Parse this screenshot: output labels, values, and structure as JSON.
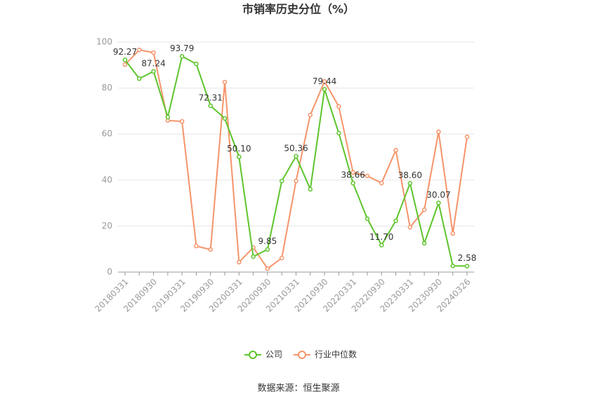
{
  "chart_data": {
    "type": "line",
    "title": "市销率历史分位（%）",
    "categories": [
      "20180331",
      null,
      "20180930",
      null,
      "20190331",
      null,
      "20190930",
      null,
      "20200331",
      null,
      "20200930",
      null,
      "20210331",
      null,
      "20210930",
      null,
      "20220331",
      null,
      "20220930",
      null,
      "20230331",
      null,
      "20230930",
      null,
      "20240326"
    ],
    "series": [
      {
        "name": "公司",
        "color": "#5ec42c",
        "values": [
          92.27,
          84.1,
          87.24,
          67.4,
          93.79,
          90.5,
          72.31,
          66.8,
          50.1,
          6.7,
          9.85,
          39.6,
          50.36,
          36.0,
          79.44,
          60.4,
          38.66,
          23.2,
          11.7,
          22.3,
          38.6,
          12.5,
          30.07,
          2.7,
          2.58
        ],
        "value_labels": [
          "92.27",
          null,
          "87.24",
          null,
          "93.79",
          null,
          "72.31",
          null,
          "50.10",
          null,
          "9.85",
          null,
          "50.36",
          null,
          "79.44",
          null,
          "38.66",
          null,
          "11.70",
          null,
          "38.60",
          null,
          "30.07",
          null,
          "2.58"
        ]
      },
      {
        "name": "行业中位数",
        "color": "#f5946a",
        "values": [
          90.2,
          96.6,
          95.4,
          65.9,
          65.5,
          11.3,
          9.8,
          82.6,
          4.3,
          10.7,
          1.5,
          6.1,
          39.6,
          68.3,
          82.9,
          72.0,
          43.3,
          41.8,
          38.7,
          53.0,
          19.5,
          27.1,
          61.0,
          16.8,
          58.8
        ]
      }
    ],
    "ylim": [
      0,
      100
    ],
    "yticks": [
      0,
      20,
      40,
      60,
      80,
      100
    ],
    "grid": true,
    "source": "数据来源：恒生聚源"
  }
}
